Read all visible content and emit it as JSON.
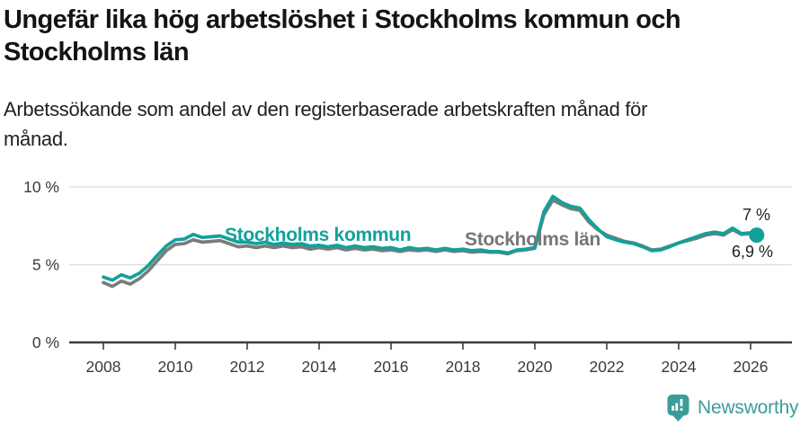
{
  "title": {
    "text": "Ungefär lika hög arbetslöshet i Stockholms kommun och Stockholms län",
    "line1": "Ungefär lika hög arbetslöshet i Stockholms kommun och",
    "line2": "Stockholms län"
  },
  "subtitle": {
    "text": "Arbetssökande som andel av den registerbaserade arbetskraften månad för månad.",
    "line1": "Arbetssökande som andel av den registerbaserade arbetskraften månad för",
    "line2": "månad."
  },
  "colors": {
    "kommun": "#12a19a",
    "lan": "#7b7b7b",
    "grid": "#dcdcdc",
    "axis": "#3d3d3d",
    "tick_text": "#3a3a3a",
    "brand": "#3a9d99"
  },
  "chart_data": {
    "type": "line",
    "title": "Ungefär lika hög arbetslöshet i Stockholms kommun och Stockholms län",
    "subtitle": "Arbetssökande som andel av den registerbaserade arbetskraften månad för månad.",
    "xlabel": "",
    "ylabel": "",
    "x_unit": "decimal year (monthly data, values estimated from plot)",
    "xlim": [
      2007.05,
      2027.1
    ],
    "ylim": [
      0,
      11
    ],
    "grid": "horizontal only",
    "legend_position": "inline labels on lines",
    "yticks": [
      {
        "value": 0,
        "label": "0 %"
      },
      {
        "value": 5,
        "label": "5 %"
      },
      {
        "value": 10,
        "label": "10 %"
      }
    ],
    "xticks": [
      {
        "value": 2008,
        "label": "2008"
      },
      {
        "value": 2010,
        "label": "2010"
      },
      {
        "value": 2012,
        "label": "2012"
      },
      {
        "value": 2014,
        "label": "2014"
      },
      {
        "value": 2016,
        "label": "2016"
      },
      {
        "value": 2018,
        "label": "2018"
      },
      {
        "value": 2020,
        "label": "2020"
      },
      {
        "value": 2022,
        "label": "2022"
      },
      {
        "value": 2024,
        "label": "2024"
      },
      {
        "value": 2026,
        "label": "2026"
      }
    ],
    "series": [
      {
        "id": "stockholms-kommun",
        "name": "Stockholms kommun",
        "color": "#12a19a",
        "end_label": "6,9 %",
        "end_value": 6.9,
        "end_dot": true,
        "x": [
          2008.0,
          2008.25,
          2008.5,
          2008.75,
          2009.0,
          2009.25,
          2009.5,
          2009.75,
          2010.0,
          2010.25,
          2010.5,
          2010.75,
          2011.0,
          2011.25,
          2011.5,
          2011.75,
          2012.0,
          2012.25,
          2012.5,
          2012.75,
          2013.0,
          2013.25,
          2013.5,
          2013.75,
          2014.0,
          2014.25,
          2014.5,
          2014.75,
          2015.0,
          2015.25,
          2015.5,
          2015.75,
          2016.0,
          2016.25,
          2016.5,
          2016.75,
          2017.0,
          2017.25,
          2017.5,
          2017.75,
          2018.0,
          2018.25,
          2018.5,
          2018.75,
          2019.0,
          2019.25,
          2019.5,
          2019.75,
          2020.0,
          2020.25,
          2020.5,
          2020.75,
          2021.0,
          2021.25,
          2021.5,
          2021.75,
          2022.0,
          2022.25,
          2022.5,
          2022.75,
          2023.0,
          2023.25,
          2023.5,
          2023.75,
          2024.0,
          2024.25,
          2024.5,
          2024.75,
          2025.0,
          2025.25,
          2025.5,
          2025.75,
          2026.0,
          2026.17
        ],
        "values": [
          4.2,
          4.0,
          4.35,
          4.15,
          4.45,
          4.95,
          5.6,
          6.2,
          6.6,
          6.65,
          6.95,
          6.75,
          6.8,
          6.85,
          6.65,
          6.45,
          6.45,
          6.35,
          6.45,
          6.3,
          6.4,
          6.3,
          6.35,
          6.2,
          6.25,
          6.15,
          6.25,
          6.1,
          6.2,
          6.1,
          6.15,
          6.05,
          6.1,
          5.95,
          6.1,
          6.0,
          6.05,
          5.95,
          6.05,
          5.95,
          6.0,
          5.9,
          5.95,
          5.85,
          5.85,
          5.75,
          5.95,
          6.0,
          6.1,
          8.4,
          9.4,
          9.0,
          8.75,
          8.65,
          7.9,
          7.3,
          6.8,
          6.6,
          6.45,
          6.35,
          6.15,
          5.9,
          5.95,
          6.15,
          6.4,
          6.6,
          6.8,
          7.0,
          7.1,
          7.0,
          7.35,
          7.0,
          7.05,
          6.9
        ]
      },
      {
        "id": "stockholms-lan",
        "name": "Stockholms län",
        "color": "#7b7b7b",
        "end_label": "7 %",
        "end_value": 7.0,
        "end_dot": false,
        "x": [
          2008.0,
          2008.25,
          2008.5,
          2008.75,
          2009.0,
          2009.25,
          2009.5,
          2009.75,
          2010.0,
          2010.25,
          2010.5,
          2010.75,
          2011.0,
          2011.25,
          2011.5,
          2011.75,
          2012.0,
          2012.25,
          2012.5,
          2012.75,
          2013.0,
          2013.25,
          2013.5,
          2013.75,
          2014.0,
          2014.25,
          2014.5,
          2014.75,
          2015.0,
          2015.25,
          2015.5,
          2015.75,
          2016.0,
          2016.25,
          2016.5,
          2016.75,
          2017.0,
          2017.25,
          2017.5,
          2017.75,
          2018.0,
          2018.25,
          2018.5,
          2018.75,
          2019.0,
          2019.25,
          2019.5,
          2019.75,
          2020.0,
          2020.25,
          2020.5,
          2020.75,
          2021.0,
          2021.25,
          2021.5,
          2021.75,
          2022.0,
          2022.25,
          2022.5,
          2022.75,
          2023.0,
          2023.25,
          2023.5,
          2023.75,
          2024.0,
          2024.25,
          2024.5,
          2024.75,
          2025.0,
          2025.25,
          2025.5,
          2025.75,
          2026.0,
          2026.17
        ],
        "values": [
          3.85,
          3.6,
          3.95,
          3.75,
          4.1,
          4.6,
          5.25,
          5.9,
          6.3,
          6.35,
          6.6,
          6.45,
          6.5,
          6.55,
          6.35,
          6.15,
          6.2,
          6.1,
          6.2,
          6.1,
          6.2,
          6.1,
          6.15,
          6.0,
          6.1,
          6.0,
          6.1,
          5.95,
          6.05,
          5.95,
          6.0,
          5.9,
          5.95,
          5.85,
          5.95,
          5.9,
          5.95,
          5.85,
          5.95,
          5.85,
          5.9,
          5.8,
          5.85,
          5.8,
          5.8,
          5.7,
          5.9,
          5.95,
          6.05,
          8.2,
          9.15,
          8.85,
          8.6,
          8.5,
          7.75,
          7.25,
          6.9,
          6.7,
          6.5,
          6.4,
          6.2,
          5.95,
          6.0,
          6.2,
          6.4,
          6.55,
          6.7,
          6.9,
          7.0,
          6.9,
          7.25,
          6.95,
          7.0,
          7.0
        ]
      }
    ]
  },
  "footer": {
    "brand": "Newsworthy",
    "logo_icon": "bar-chart-speech-bubble"
  }
}
